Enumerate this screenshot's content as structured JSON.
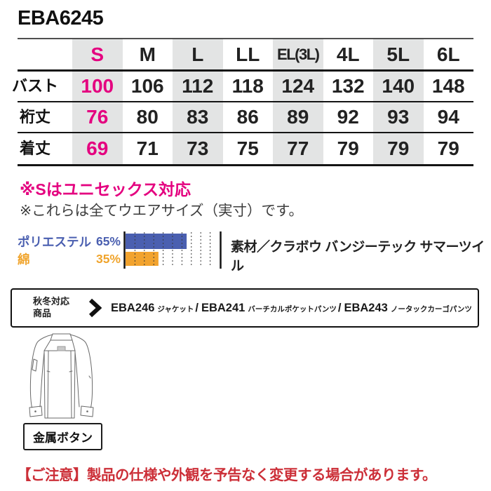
{
  "title": "EBA6245",
  "size_table": {
    "columns": [
      "S",
      "M",
      "L",
      "LL",
      "EL(3L)",
      "4L",
      "5L",
      "6L"
    ],
    "highlight_column": "S",
    "rows": [
      {
        "label": "バスト",
        "values": [
          "100",
          "106",
          "112",
          "118",
          "124",
          "132",
          "140",
          "148"
        ]
      },
      {
        "label": "裄丈",
        "values": [
          "76",
          "80",
          "83",
          "86",
          "89",
          "92",
          "93",
          "94"
        ]
      },
      {
        "label": "着丈",
        "values": [
          "69",
          "71",
          "73",
          "75",
          "77",
          "79",
          "79",
          "79"
        ]
      }
    ]
  },
  "notes": {
    "unisex": "※Sはユニセックス対応",
    "actual_size": "※これらは全てウエアサイズ（実寸）です。"
  },
  "chart_data": {
    "type": "bar",
    "orientation": "horizontal",
    "categories": [
      "ポリエステル",
      "綿"
    ],
    "values": [
      65,
      35
    ],
    "value_labels": [
      "65%",
      "35%"
    ],
    "series_colors": [
      "#4a5fb0",
      "#f2a32e"
    ],
    "xlim": [
      0,
      100
    ],
    "grid_step": 10,
    "grid": true,
    "title": "",
    "xlabel": "",
    "ylabel": ""
  },
  "material": {
    "source_label": "素材／クラボウ バンジーテック サマーツイル"
  },
  "related_products": {
    "heading_line1": "秋冬対応",
    "heading_line2": "商品",
    "separator": "/",
    "items": [
      {
        "code": "EBA246",
        "name": "ジャケット"
      },
      {
        "code": "EBA241",
        "name": "バーチカルポケットパンツ"
      },
      {
        "code": "EBA243",
        "name": "ノータックカーゴパンツ"
      }
    ]
  },
  "illustration": {
    "caption": "金属ボタン"
  },
  "caution": "【ご注意】製品の仕様や外観を予告なく変更する場合があります。",
  "colors": {
    "accent_magenta": "#e4007f",
    "stripe_gray": "#e3e4e4",
    "bar_blue": "#4a5fb0",
    "bar_orange": "#f2a32e",
    "caution_red": "#cc2f38"
  }
}
